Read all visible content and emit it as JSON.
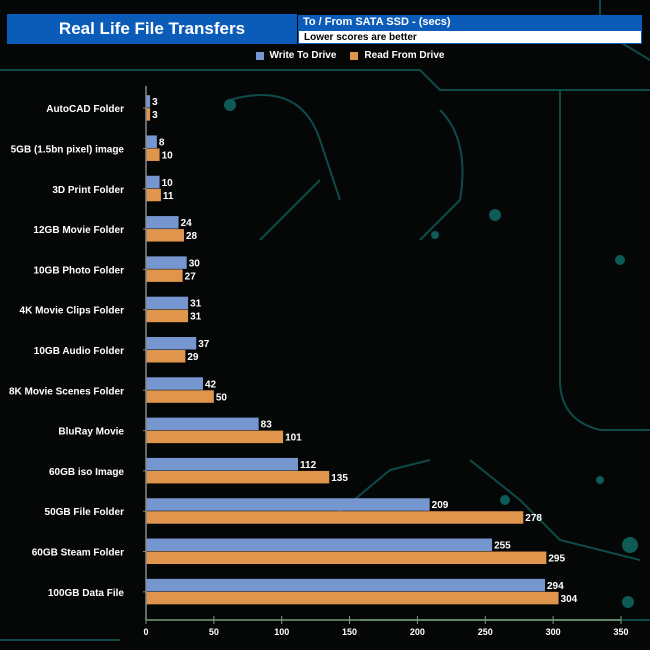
{
  "header": {
    "title": "Real Life File Transfers",
    "subtitle": "To /  From SATA SSD - (secs)",
    "note": "Lower scores are better"
  },
  "chart_data": {
    "type": "bar",
    "orientation": "horizontal",
    "title": "Real Life File Transfers",
    "subtitle": "To /  From SATA SSD - (secs)",
    "categories": [
      "AutoCAD Folder",
      "5GB (1.5bn pixel) image",
      "3D Print Folder",
      "12GB Movie Folder",
      "10GB Photo Folder",
      "4K Movie Clips Folder",
      "10GB Audio Folder",
      "8K Movie Scenes Folder",
      "BluRay Movie",
      "60GB iso Image",
      "50GB File Folder",
      "60GB Steam Folder",
      "100GB Data File"
    ],
    "series": [
      {
        "name": "Write To  Drive",
        "color": "#7696cf",
        "values": [
          3,
          8,
          10,
          24,
          30,
          31,
          37,
          42,
          83,
          112,
          209,
          255,
          294
        ]
      },
      {
        "name": "Read From  Drive",
        "color": "#e0954c",
        "values": [
          3,
          10,
          11,
          28,
          27,
          31,
          29,
          50,
          101,
          135,
          278,
          295,
          304
        ]
      }
    ],
    "xlim": [
      0,
      350
    ],
    "xticks": [
      "0",
      "50",
      "100",
      "150",
      "200",
      "250",
      "300",
      "350"
    ],
    "legend": "top-center"
  }
}
